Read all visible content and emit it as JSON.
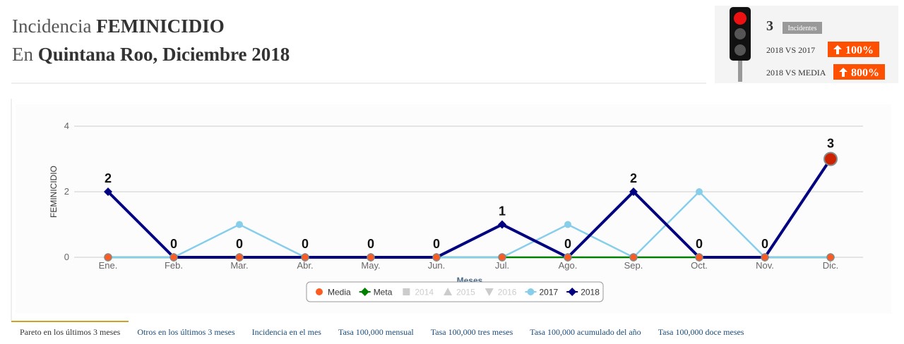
{
  "header": {
    "title_prefix": "Incidencia",
    "title_bold": "FEMINICIDIO",
    "subtitle_prefix": "En",
    "subtitle_bold": "Quintana Roo, Diciembre 2018"
  },
  "indicator": {
    "count": 3,
    "count_label": "Incidentes",
    "compare_1_label": "2018 VS 2017",
    "compare_1_value": "100%",
    "compare_2_label": "2018 VS MEDIA",
    "compare_2_value": "800%"
  },
  "chart_data": {
    "type": "line",
    "ylabel": "FEMINICIDIO",
    "xlabel": "Meses",
    "categories": [
      "Ene.",
      "Feb.",
      "Mar.",
      "Abr.",
      "May.",
      "Jun.",
      "Jul.",
      "Ago.",
      "Sep.",
      "Oct.",
      "Nov.",
      "Dic."
    ],
    "ylim": [
      0,
      4
    ],
    "yticks": [
      0,
      2,
      4
    ],
    "grid": true,
    "series": [
      {
        "name": "Media",
        "color": "#ff5a1f",
        "marker": "circle",
        "line": false,
        "values": [
          0,
          0,
          0,
          0,
          0,
          0,
          0,
          0,
          0,
          0,
          0,
          0
        ]
      },
      {
        "name": "Meta",
        "color": "#008000",
        "marker": "diamond",
        "line": true,
        "values": [
          0,
          0,
          0,
          0,
          0,
          0,
          0,
          0,
          0,
          0,
          0,
          0
        ]
      },
      {
        "name": "2014",
        "color": "#cccccc",
        "marker": "square",
        "visible": false,
        "values": [
          null,
          null,
          null,
          null,
          null,
          null,
          null,
          null,
          null,
          null,
          null,
          null
        ]
      },
      {
        "name": "2015",
        "color": "#cccccc",
        "marker": "triangle",
        "visible": false,
        "values": [
          null,
          null,
          null,
          null,
          null,
          null,
          null,
          null,
          null,
          null,
          null,
          null
        ]
      },
      {
        "name": "2016",
        "color": "#cccccc",
        "marker": "triangle-down",
        "visible": false,
        "values": [
          null,
          null,
          null,
          null,
          null,
          null,
          null,
          null,
          null,
          null,
          null,
          null
        ]
      },
      {
        "name": "2017",
        "color": "#87ceeb",
        "marker": "circle",
        "line": true,
        "values": [
          0,
          0,
          1,
          0,
          0,
          0,
          0,
          1,
          0,
          2,
          0,
          0
        ]
      },
      {
        "name": "2018",
        "color": "#000080",
        "marker": "diamond",
        "line": true,
        "data_labels": true,
        "highlight_color": "#cc2200",
        "values": [
          2,
          0,
          0,
          0,
          0,
          0,
          1,
          0,
          2,
          0,
          0,
          3
        ]
      }
    ]
  },
  "tabs": [
    "Pareto en los últimos 3 meses",
    "Otros en los últimos 3 meses",
    "Incidencia en el mes",
    "Tasa 100,000 mensual",
    "Tasa 100,000 tres meses",
    "Tasa 100,000 acumulado del año",
    "Tasa 100,000 doce meses"
  ]
}
